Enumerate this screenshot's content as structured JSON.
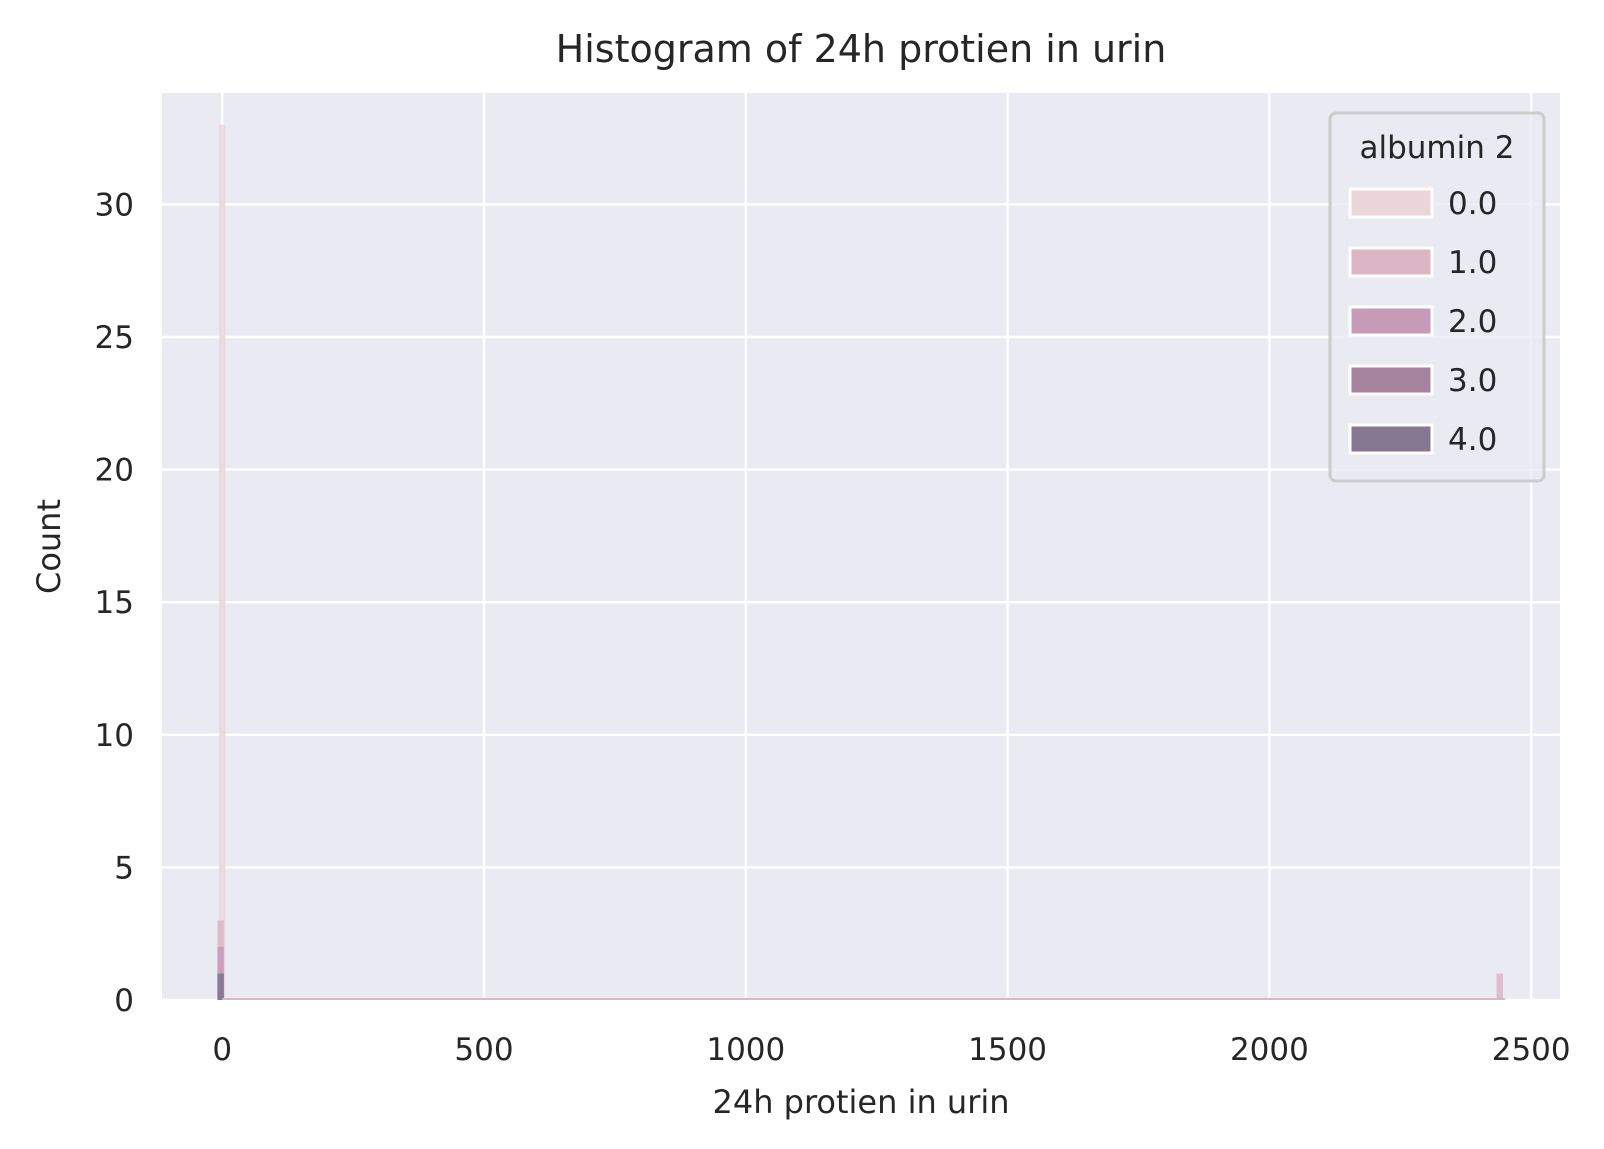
{
  "chart_data": {
    "type": "histogram",
    "title": "Histogram of 24h protien in urin",
    "xlabel": "24h protien in urin",
    "ylabel": "Count",
    "xlim": [
      -115,
      2555
    ],
    "ylim": [
      0,
      34.2
    ],
    "xticks": [
      0,
      500,
      1000,
      1500,
      2000,
      2500
    ],
    "yticks": [
      0,
      5,
      10,
      15,
      20,
      25,
      30
    ],
    "bin_width": 12.2,
    "grid": true,
    "legend_position": "top-right",
    "legend_title": "albumin 2",
    "series": [
      {
        "name": "0.0",
        "color": "#ead5d8",
        "bins": [
          {
            "x": 0,
            "count": 33
          }
        ]
      },
      {
        "name": "1.0",
        "color": "#dcb6c4",
        "bins": [
          {
            "x": -3,
            "count": 3
          },
          {
            "x": 2440,
            "count": 1
          }
        ]
      },
      {
        "name": "2.0",
        "color": "#c59bb8",
        "bins": [
          {
            "x": -3,
            "count": 2
          }
        ]
      },
      {
        "name": "3.0",
        "color": "#a5839f",
        "bins": [
          {
            "x": -3,
            "count": 1
          }
        ]
      },
      {
        "name": "4.0",
        "color": "#857790",
        "bins": [
          {
            "x": -3,
            "count": 1
          }
        ]
      }
    ]
  }
}
